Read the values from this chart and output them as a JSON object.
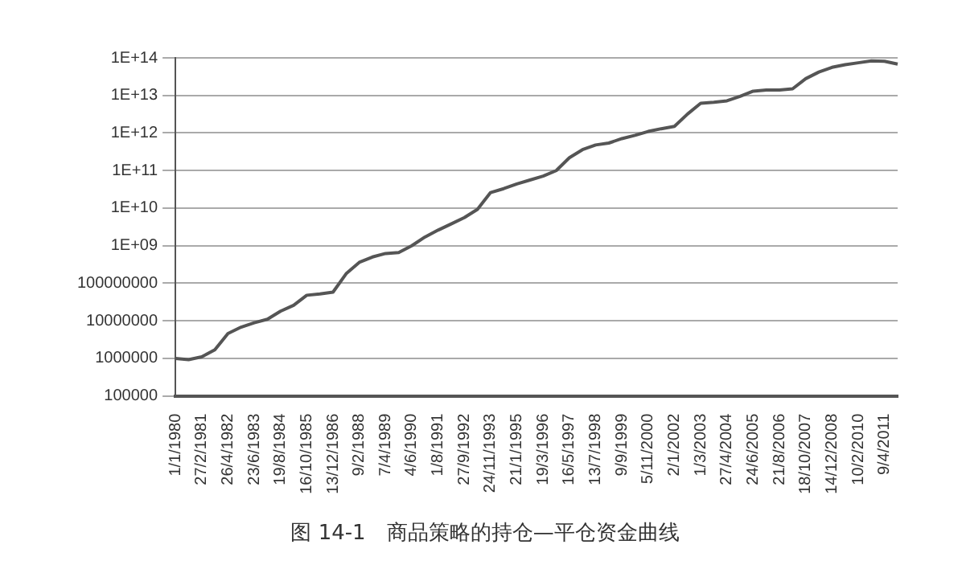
{
  "chart_data": {
    "type": "line",
    "title": "图 14-1　商品策略的持仓—平仓资金曲线",
    "categories": [
      "1/1/1980",
      null,
      "27/2/1981",
      null,
      "26/4/1982",
      null,
      "23/6/1983",
      null,
      "19/8/1984",
      null,
      "16/10/1985",
      null,
      "13/12/1986",
      null,
      "9/2/1988",
      null,
      "7/4/1989",
      null,
      "4/6/1990",
      null,
      "1/8/1991",
      null,
      "27/9/1992",
      null,
      "24/11/1993",
      null,
      "21/1/1995",
      null,
      "19/3/1996",
      null,
      "16/5/1997",
      null,
      "13/7/1998",
      null,
      "9/9/1999",
      null,
      "5/11/2000",
      null,
      "2/1/2002",
      null,
      "1/3/2003",
      null,
      "27/4/2004",
      null,
      "24/6/2005",
      null,
      "21/8/2006",
      null,
      "18/10/2007",
      null,
      "14/12/2008",
      null,
      "10/2/2010",
      null,
      "9/4/2011",
      null
    ],
    "series": [
      {
        "color": "#555555",
        "values": [
          1000000.0,
          930000.0,
          1100000.0,
          1700000.0,
          4600000.0,
          6800000.0,
          8900000.0,
          11000000.0,
          18000000.0,
          26000000.0,
          48000000.0,
          52000000.0,
          58000000.0,
          180000000.0,
          360000000.0,
          500000000.0,
          620000000.0,
          660000000.0,
          1000000000.0,
          1700000000.0,
          2600000000.0,
          3800000000.0,
          5600000000.0,
          9300000000.0,
          26000000000.0,
          33000000000.0,
          44000000000.0,
          56000000000.0,
          71000000000.0,
          100000000000.0,
          220000000000.0,
          360000000000.0,
          480000000000.0,
          540000000000.0,
          710000000000.0,
          870000000000.0,
          1100000000000.0,
          1300000000000.0,
          1500000000000.0,
          3200000000000.0,
          6200000000000.0,
          6600000000000.0,
          7200000000000.0,
          9500000000000.0,
          13000000000000.0,
          14000000000000.0,
          14000000000000.0,
          15000000000000.0,
          28000000000000.0,
          42000000000000.0,
          56000000000000.0,
          66000000000000.0,
          74000000000000.0,
          83000000000000.0,
          81000000000000.0,
          68000000000000.0
        ]
      }
    ],
    "log": true,
    "ylim": [
      100000.0,
      100000000000000.0
    ],
    "yticks": [
      100000,
      1000000,
      10000000,
      100000000,
      {
        "value": 1000000000.0,
        "label": "1E+09"
      },
      {
        "value": 10000000000.0,
        "label": "1E+10"
      },
      {
        "value": 100000000000.0,
        "label": "1E+11"
      },
      {
        "value": 1000000000000.0,
        "label": "1E+12"
      },
      {
        "value": 10000000000000.0,
        "label": "1E+13"
      },
      {
        "value": 100000000000000.0,
        "label": "1E+14"
      }
    ],
    "grid": "y",
    "marker": "none",
    "line_style": "solid",
    "legend": false
  }
}
